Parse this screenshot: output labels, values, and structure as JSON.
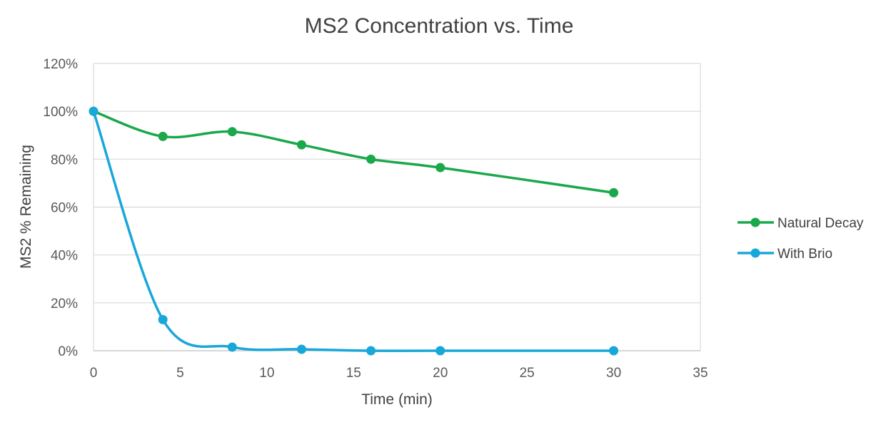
{
  "chart_data": {
    "type": "line",
    "title": "MS2 Concentration vs. Time",
    "xlabel": "Time (min)",
    "ylabel": "MS2 % Remaining",
    "xlim": [
      0,
      35
    ],
    "ylim": [
      0,
      1.2
    ],
    "x_ticks": [
      0,
      5,
      10,
      15,
      20,
      25,
      30,
      35
    ],
    "y_ticks": [
      0,
      0.2,
      0.4,
      0.6,
      0.8,
      1.0,
      1.2
    ],
    "y_format": "percent",
    "grid": "horizontal",
    "legend_position": "right",
    "smooth": true,
    "series": [
      {
        "name": "Natural Decay",
        "color": "#1aa84b",
        "x": [
          0,
          4,
          8,
          12,
          16,
          20,
          30
        ],
        "values": [
          1.0,
          0.895,
          0.915,
          0.86,
          0.8,
          0.765,
          0.66
        ]
      },
      {
        "name": "With Brio",
        "color": "#18a7d9",
        "x": [
          0,
          4,
          8,
          12,
          16,
          20,
          30
        ],
        "values": [
          1.0,
          0.13,
          0.015,
          0.006,
          0.0,
          0.0,
          0.0
        ]
      }
    ]
  }
}
